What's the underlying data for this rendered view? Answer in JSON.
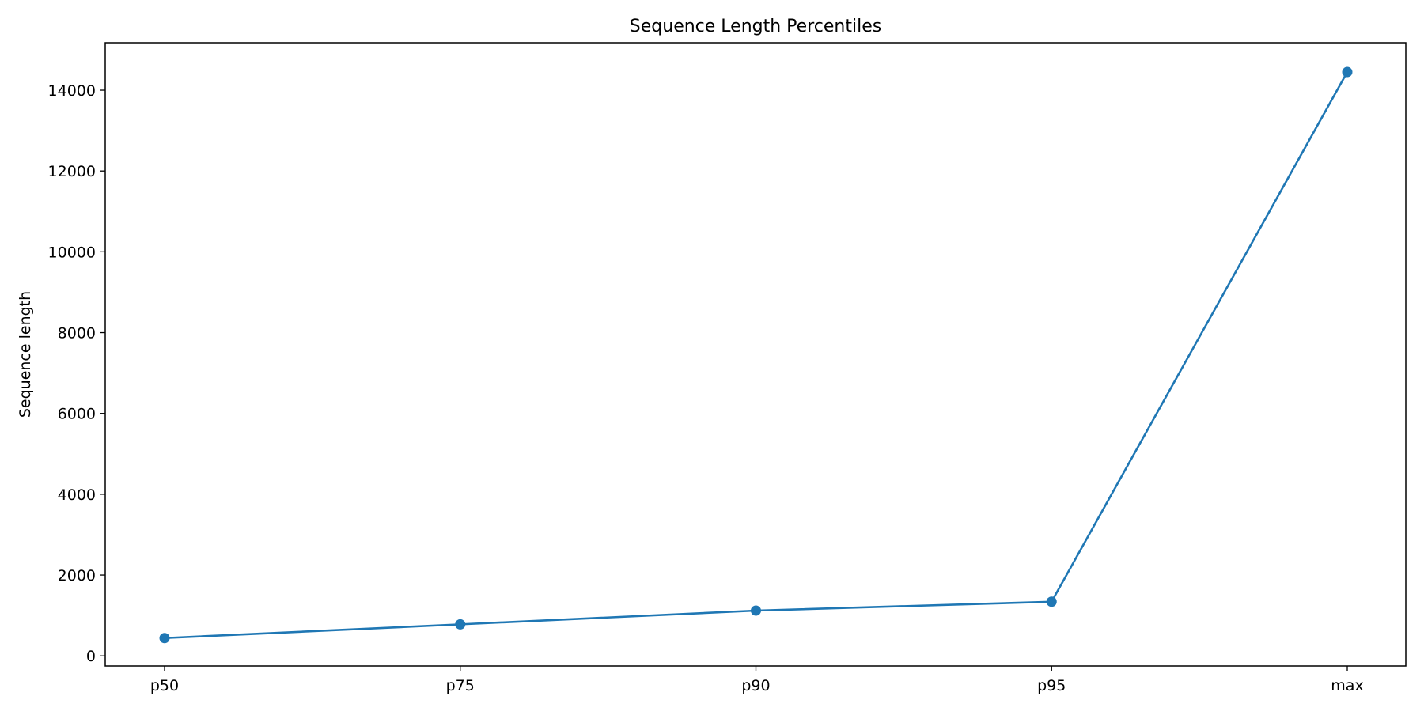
{
  "chart_data": {
    "type": "line",
    "title": "Sequence Length Percentiles",
    "xlabel": "",
    "ylabel": "Sequence length",
    "categories": [
      "p50",
      "p75",
      "p90",
      "p95",
      "max"
    ],
    "series": [
      {
        "values": [
          440,
          780,
          1120,
          1340,
          14450
        ],
        "color": "#1f77b4",
        "marker": "circle"
      }
    ],
    "ylim": [
      -250,
      15175
    ],
    "yticks": [
      0,
      2000,
      4000,
      6000,
      8000,
      10000,
      12000,
      14000
    ],
    "grid": false,
    "legend": "none"
  }
}
